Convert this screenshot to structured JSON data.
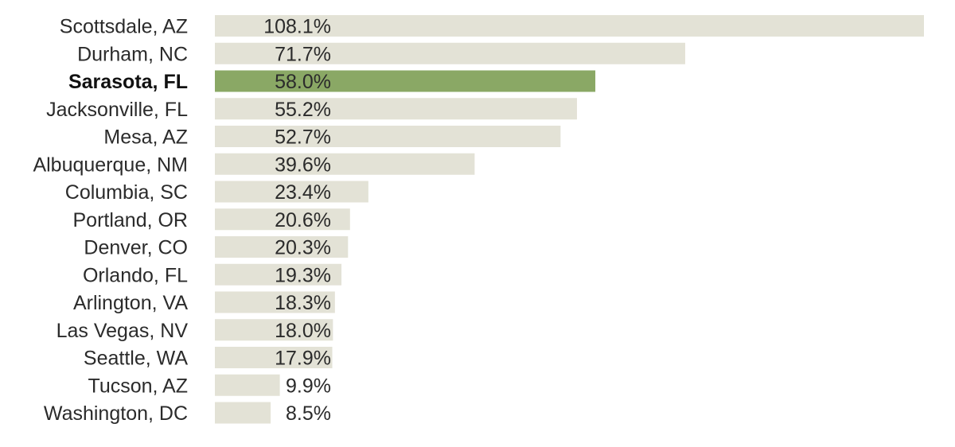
{
  "chart_data": {
    "type": "bar",
    "orientation": "horizontal",
    "title": "",
    "xlabel": "",
    "ylabel": "",
    "categories": [
      "Scottsdale, AZ",
      "Durham, NC",
      "Sarasota, FL",
      "Jacksonville, FL",
      "Mesa, AZ",
      "Albuquerque, NM",
      "Columbia, SC",
      "Portland, OR",
      "Denver, CO",
      "Orlando, FL",
      "Arlington, VA",
      "Las Vegas, NV",
      "Seattle, WA",
      "Tucson, AZ",
      "Washington, DC"
    ],
    "values": [
      108.1,
      71.7,
      58.0,
      55.2,
      52.7,
      39.6,
      23.4,
      20.6,
      20.3,
      19.3,
      18.3,
      18.0,
      17.9,
      9.9,
      8.5
    ],
    "value_labels": [
      "108.1%",
      "71.7%",
      "58.0%",
      "55.2%",
      "52.7%",
      "39.6%",
      "23.4%",
      "20.6%",
      "20.3%",
      "19.3%",
      "18.3%",
      "18.0%",
      "17.9%",
      "9.9%",
      "8.5%"
    ],
    "xlim": [
      0,
      108.1
    ],
    "grid": false,
    "legend": "none",
    "highlight_category": "Sarasota, FL",
    "colors": {
      "bar": "#e3e2d6",
      "highlight_bar": "#8aa865",
      "text": "#2b2b2b"
    }
  }
}
